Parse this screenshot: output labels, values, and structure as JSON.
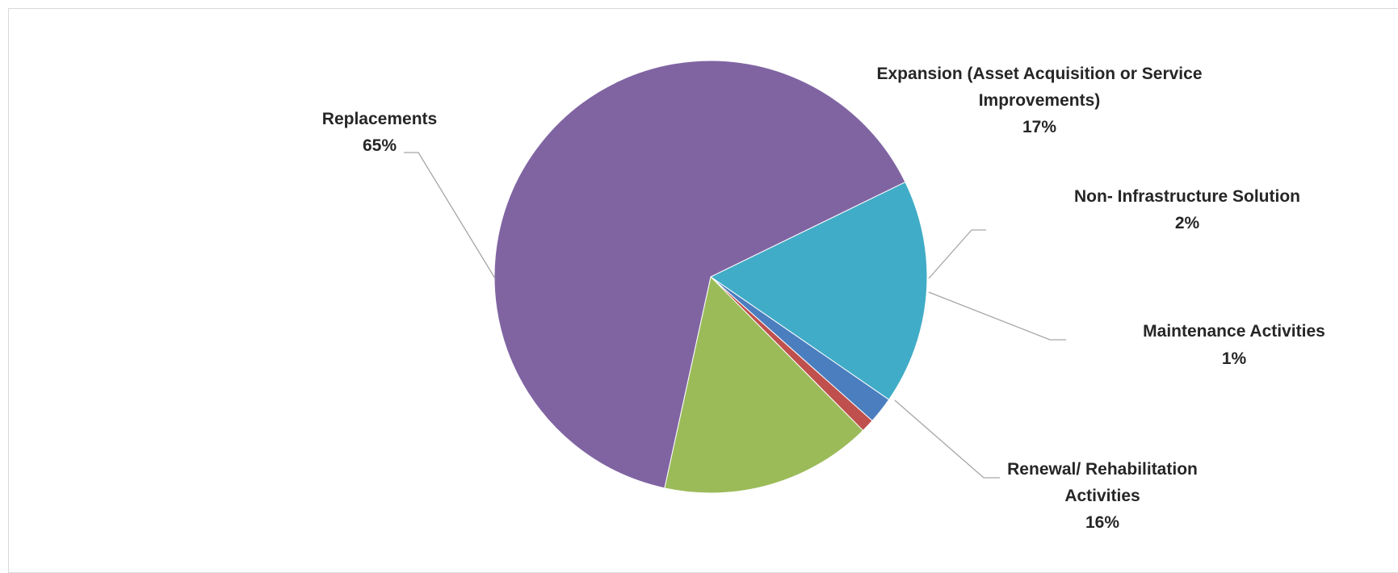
{
  "chart_data": {
    "type": "pie",
    "title": "",
    "start_angle_deg": 64,
    "direction": "clockwise",
    "legend": "none",
    "slices": [
      {
        "label": "Expansion (Asset Acquisition or Service Improvements)",
        "label_lines": [
          "Expansion (Asset Acquisition or Service",
          "Improvements)"
        ],
        "value": 17,
        "value_label": "17%",
        "color": "#41ACC7"
      },
      {
        "label": "Non- Infrastructure Solution",
        "label_lines": [
          "Non- Infrastructure Solution"
        ],
        "value": 2,
        "value_label": "2%",
        "color": "#4A7EBF"
      },
      {
        "label": "Maintenance Activities",
        "label_lines": [
          "Maintenance Activities"
        ],
        "value": 1,
        "value_label": "1%",
        "color": "#C0504D"
      },
      {
        "label": "Renewal/ Rehabilitation Activities",
        "label_lines": [
          "Renewal/ Rehabilitation",
          "Activities"
        ],
        "value": 16,
        "value_label": "16%",
        "color": "#9BBB59"
      },
      {
        "label": "Replacements",
        "label_lines": [
          "Replacements"
        ],
        "value": 65,
        "value_label": "65%",
        "color": "#8064A2"
      }
    ]
  }
}
